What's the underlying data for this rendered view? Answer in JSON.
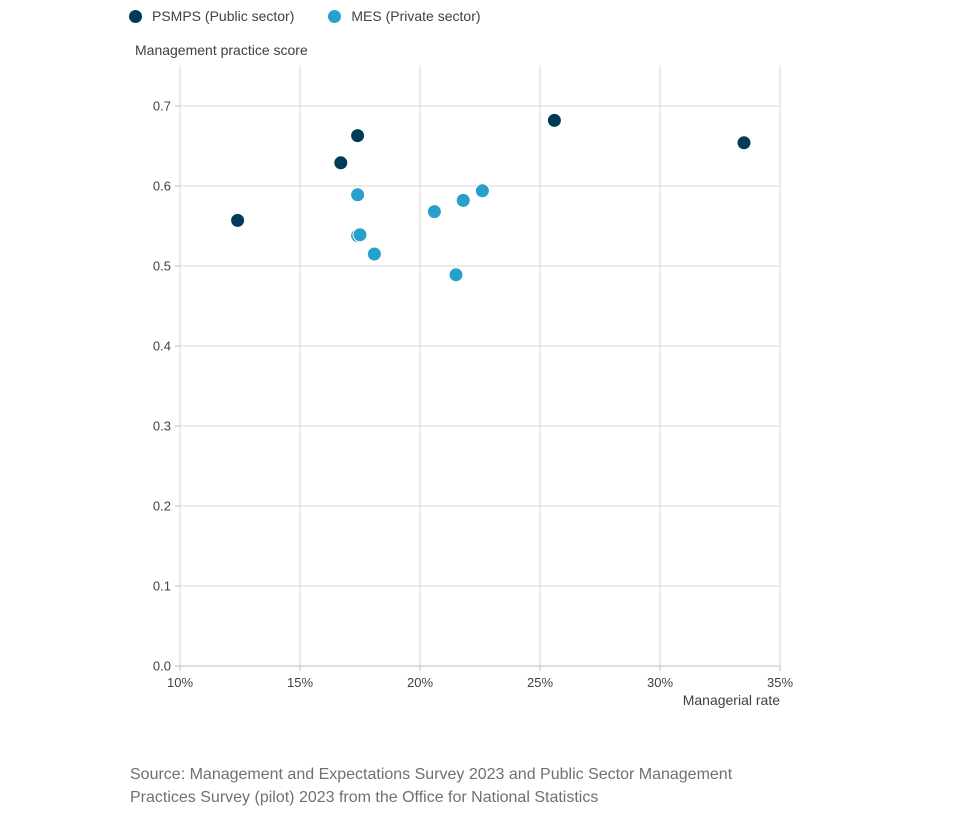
{
  "chart_data": {
    "type": "scatter",
    "xlabel": "Managerial rate",
    "ylabel": "Management practice score",
    "xlim": [
      10,
      35
    ],
    "ylim": [
      0,
      0.7
    ],
    "x_unit": "%",
    "x_ticks": [
      "10%",
      "15%",
      "20%",
      "25%",
      "30%",
      "35%"
    ],
    "x_tick_values": [
      10,
      15,
      20,
      25,
      30,
      35
    ],
    "y_ticks": [
      "0.0",
      "0.1",
      "0.2",
      "0.3",
      "0.4",
      "0.5",
      "0.6",
      "0.7"
    ],
    "y_tick_values": [
      0,
      0.1,
      0.2,
      0.3,
      0.4,
      0.5,
      0.6,
      0.7
    ],
    "grid": true,
    "legend_position": "top-left",
    "series": [
      {
        "name": "PSMPS (Public sector)",
        "color": "#003c57",
        "points": [
          {
            "x": 12.4,
            "y": 0.557
          },
          {
            "x": 16.7,
            "y": 0.629
          },
          {
            "x": 17.4,
            "y": 0.663
          },
          {
            "x": 25.6,
            "y": 0.682
          },
          {
            "x": 33.5,
            "y": 0.654
          }
        ]
      },
      {
        "name": "MES (Private sector)",
        "color": "#27a0cc",
        "points": [
          {
            "x": 17.4,
            "y": 0.589
          },
          {
            "x": 17.4,
            "y": 0.538
          },
          {
            "x": 17.5,
            "y": 0.539
          },
          {
            "x": 18.1,
            "y": 0.515
          },
          {
            "x": 20.6,
            "y": 0.568
          },
          {
            "x": 21.5,
            "y": 0.489
          },
          {
            "x": 21.8,
            "y": 0.582
          },
          {
            "x": 22.6,
            "y": 0.594
          }
        ]
      }
    ]
  },
  "source_text": "Source: Management and Expectations Survey 2023 and Public Sector Management Practices Survey (pilot) 2023 from the Office for National Statistics"
}
